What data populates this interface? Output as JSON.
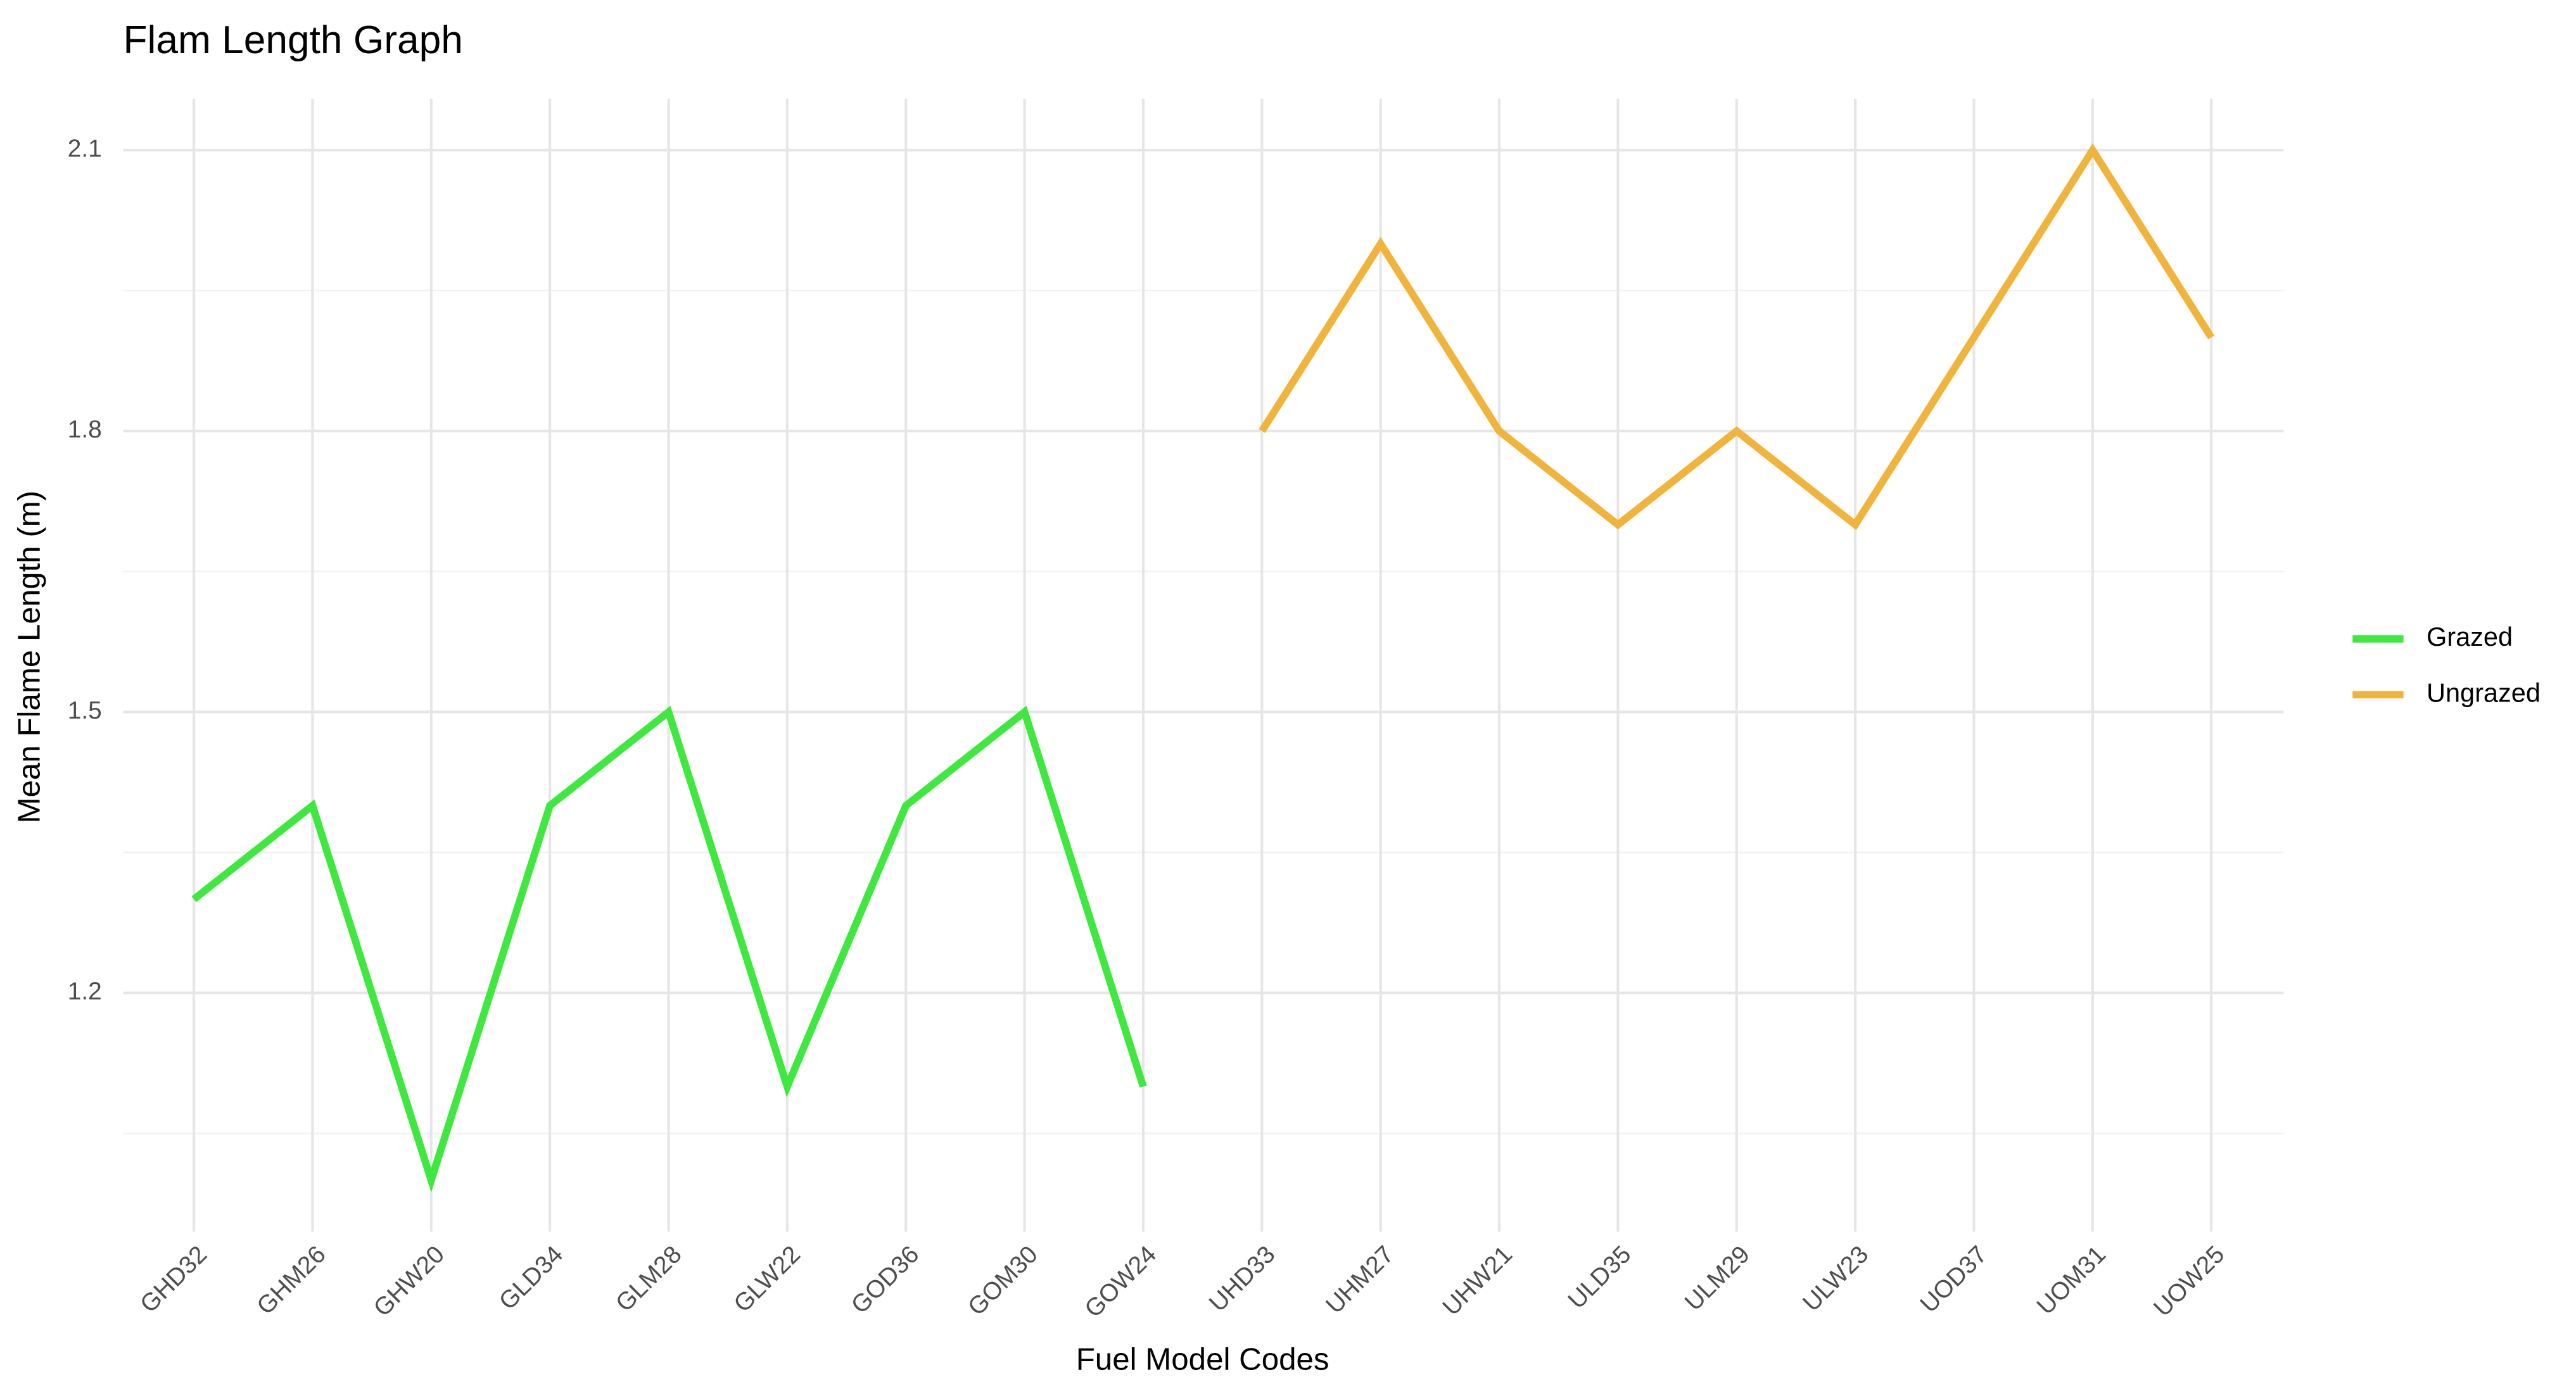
{
  "chart_data": {
    "type": "line",
    "title": "Flam Length Graph",
    "x_label": "Fuel Model Codes",
    "y_label": "Mean Flame Length (m)",
    "categories": [
      "GHD32",
      "GHM26",
      "GHW20",
      "GLD34",
      "GLM28",
      "GLW22",
      "GOD36",
      "GOM30",
      "GOW24",
      "UHD33",
      "UHM27",
      "UHW21",
      "ULD35",
      "ULM29",
      "ULW23",
      "UOD37",
      "UOM31",
      "UOW25"
    ],
    "series": [
      {
        "name": "Grazed",
        "color": "#3ee83e",
        "values": [
          1.3,
          1.4,
          1.0,
          1.4,
          1.5,
          1.1,
          1.4,
          1.5,
          1.1,
          null,
          null,
          null,
          null,
          null,
          null,
          null,
          null,
          null
        ]
      },
      {
        "name": "Ungrazed",
        "color": "#f0b43c",
        "values": [
          null,
          null,
          null,
          null,
          null,
          null,
          null,
          null,
          null,
          1.8,
          2.0,
          1.8,
          1.7,
          1.8,
          1.7,
          1.9,
          2.1,
          1.9
        ]
      }
    ],
    "ylim": [
      0.945,
      2.155
    ],
    "yticks": [
      1.2,
      1.5,
      1.8,
      2.1
    ],
    "minor_yticks": [
      1.05,
      1.35,
      1.65,
      1.95
    ],
    "grid": true,
    "legend": "right"
  }
}
